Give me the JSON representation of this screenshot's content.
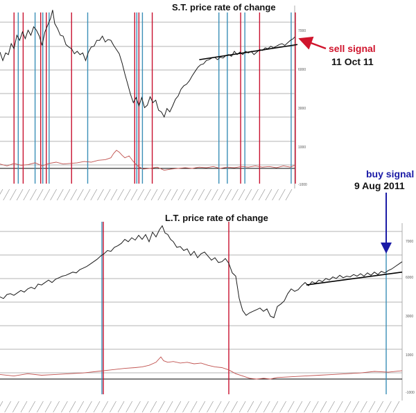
{
  "colors": {
    "price": "#1a1a1a",
    "trendline": "#000000",
    "grid": "#9a9a9a",
    "sell_signal": "#c8102e",
    "buy_signal": "#3a8fb7",
    "roc": "#c0504d",
    "sell_annotation": "#d0142c",
    "buy_annotation": "#1a1aa6"
  },
  "chart_data": [
    {
      "type": "line",
      "title": "S.T. price rate of change",
      "axis_tick_labels": [
        "7000",
        "6000",
        "3000",
        "1000",
        "-1000"
      ],
      "price_series": [
        [
          0,
          5.9
        ],
        [
          4,
          5.4
        ],
        [
          8,
          5.85
        ],
        [
          12,
          5.75
        ],
        [
          16,
          6.4
        ],
        [
          20,
          6.1
        ],
        [
          24,
          6.9
        ],
        [
          28,
          6.6
        ],
        [
          32,
          7.1
        ],
        [
          36,
          6.7
        ],
        [
          40,
          7.2
        ],
        [
          44,
          6.9
        ],
        [
          48,
          7.4
        ],
        [
          52,
          7.2
        ],
        [
          56,
          6.85
        ],
        [
          60,
          6.3
        ],
        [
          64,
          7.1
        ],
        [
          68,
          7.5
        ],
        [
          72,
          7.9
        ],
        [
          75,
          8.4
        ],
        [
          78,
          7.6
        ],
        [
          82,
          7.3
        ],
        [
          86,
          6.9
        ],
        [
          90,
          6.85
        ],
        [
          94,
          6.35
        ],
        [
          98,
          6.2
        ],
        [
          102,
          6.1
        ],
        [
          106,
          5.8
        ],
        [
          110,
          5.95
        ],
        [
          114,
          5.75
        ],
        [
          118,
          5.85
        ],
        [
          122,
          5.4
        ],
        [
          126,
          5.9
        ],
        [
          130,
          6.2
        ],
        [
          134,
          6.25
        ],
        [
          138,
          6.6
        ],
        [
          142,
          6.6
        ],
        [
          146,
          6.85
        ],
        [
          150,
          6.5
        ],
        [
          154,
          6.65
        ],
        [
          158,
          6.6
        ],
        [
          162,
          6.3
        ],
        [
          166,
          6.05
        ],
        [
          170,
          5.8
        ],
        [
          174,
          5.25
        ],
        [
          178,
          4.6
        ],
        [
          182,
          4.0
        ],
        [
          186,
          3.4
        ],
        [
          190,
          2.9
        ],
        [
          194,
          3.2
        ],
        [
          198,
          2.7
        ],
        [
          202,
          3.2
        ],
        [
          206,
          2.6
        ],
        [
          210,
          2.75
        ],
        [
          214,
          3.25
        ],
        [
          218,
          2.9
        ],
        [
          222,
          3.05
        ],
        [
          226,
          2.45
        ],
        [
          230,
          2.35
        ],
        [
          234,
          2.05
        ],
        [
          238,
          2.55
        ],
        [
          242,
          2.35
        ],
        [
          246,
          2.7
        ],
        [
          250,
          3.1
        ],
        [
          254,
          3.3
        ],
        [
          258,
          3.7
        ],
        [
          262,
          3.9
        ],
        [
          266,
          4.0
        ],
        [
          270,
          4.2
        ],
        [
          274,
          4.5
        ],
        [
          278,
          4.75
        ],
        [
          282,
          5.0
        ],
        [
          286,
          5.15
        ],
        [
          290,
          5.2
        ],
        [
          294,
          5.4
        ],
        [
          298,
          5.45
        ],
        [
          302,
          5.55
        ],
        [
          306,
          5.6
        ],
        [
          310,
          5.45
        ],
        [
          314,
          5.6
        ],
        [
          318,
          5.55
        ],
        [
          322,
          5.7
        ],
        [
          326,
          5.75
        ],
        [
          330,
          5.65
        ],
        [
          334,
          5.95
        ],
        [
          338,
          5.75
        ],
        [
          342,
          5.9
        ],
        [
          346,
          5.75
        ],
        [
          350,
          5.95
        ],
        [
          354,
          5.85
        ],
        [
          358,
          5.95
        ],
        [
          362,
          5.75
        ],
        [
          366,
          5.9
        ],
        [
          370,
          6.05
        ],
        [
          374,
          6.0
        ],
        [
          378,
          6.15
        ],
        [
          382,
          6.1
        ],
        [
          386,
          6.25
        ],
        [
          390,
          6.15
        ],
        [
          394,
          6.25
        ],
        [
          398,
          6.35
        ],
        [
          402,
          6.4
        ],
        [
          406,
          6.3
        ],
        [
          410,
          6.45
        ],
        [
          414,
          6.6
        ],
        [
          418,
          6.7
        ],
        [
          420,
          6.8
        ]
      ],
      "roc_series": [
        [
          0,
          0.35
        ],
        [
          10,
          0.2
        ],
        [
          20,
          0.4
        ],
        [
          30,
          0.25
        ],
        [
          40,
          0.3
        ],
        [
          50,
          0.45
        ],
        [
          60,
          0.2
        ],
        [
          70,
          0.4
        ],
        [
          80,
          0.5
        ],
        [
          90,
          0.35
        ],
        [
          100,
          0.4
        ],
        [
          110,
          0.45
        ],
        [
          120,
          0.55
        ],
        [
          130,
          0.5
        ],
        [
          140,
          0.65
        ],
        [
          150,
          0.7
        ],
        [
          158,
          0.85
        ],
        [
          162,
          1.2
        ],
        [
          166,
          1.45
        ],
        [
          170,
          1.3
        ],
        [
          174,
          1.05
        ],
        [
          178,
          0.85
        ],
        [
          184,
          1.0
        ],
        [
          190,
          0.55
        ],
        [
          196,
          0.2
        ],
        [
          204,
          -0.05
        ],
        [
          214,
          0.0
        ],
        [
          224,
          0.1
        ],
        [
          234,
          -0.15
        ],
        [
          244,
          -0.05
        ],
        [
          254,
          0.0
        ],
        [
          264,
          0.05
        ],
        [
          274,
          0.0
        ],
        [
          284,
          0.1
        ],
        [
          294,
          0.05
        ],
        [
          304,
          0.15
        ],
        [
          314,
          0.0
        ],
        [
          324,
          0.1
        ],
        [
          334,
          0.05
        ],
        [
          344,
          0.15
        ],
        [
          354,
          0.1
        ],
        [
          364,
          0.2
        ],
        [
          374,
          0.1
        ],
        [
          384,
          0.15
        ],
        [
          394,
          0.05
        ],
        [
          404,
          0.2
        ],
        [
          414,
          0.1
        ],
        [
          420,
          0.25
        ]
      ],
      "trendline": [
        [
          284,
          5.45
        ],
        [
          424,
          6.35
        ]
      ],
      "sell_signals": [
        20,
        33,
        58,
        66,
        102,
        192,
        198,
        217,
        343,
        370,
        421
      ],
      "buy_signals": [
        26,
        50,
        61,
        70,
        125,
        195,
        203,
        312,
        324,
        349,
        415
      ],
      "annotation": {
        "text": "sell signal",
        "date": "11 Oct 11",
        "x": 421
      }
    },
    {
      "type": "line",
      "title": "L.T. price rate of change",
      "axis_tick_labels": [
        "7000",
        "6000",
        "3000",
        "1000",
        "-1000"
      ],
      "price_series": [
        [
          0,
          4.3
        ],
        [
          5,
          4.2
        ],
        [
          10,
          4.45
        ],
        [
          15,
          4.5
        ],
        [
          20,
          4.4
        ],
        [
          25,
          4.55
        ],
        [
          30,
          4.7
        ],
        [
          35,
          4.6
        ],
        [
          40,
          4.8
        ],
        [
          45,
          4.9
        ],
        [
          50,
          4.8
        ],
        [
          55,
          5.1
        ],
        [
          60,
          5.05
        ],
        [
          65,
          5.2
        ],
        [
          70,
          5.35
        ],
        [
          75,
          5.2
        ],
        [
          80,
          5.4
        ],
        [
          85,
          5.5
        ],
        [
          90,
          5.6
        ],
        [
          95,
          5.65
        ],
        [
          100,
          5.75
        ],
        [
          105,
          5.85
        ],
        [
          110,
          5.8
        ],
        [
          115,
          6.0
        ],
        [
          120,
          6.1
        ],
        [
          125,
          6.2
        ],
        [
          130,
          6.35
        ],
        [
          135,
          6.5
        ],
        [
          140,
          6.65
        ],
        [
          145,
          6.85
        ],
        [
          150,
          7.0
        ],
        [
          155,
          7.2
        ],
        [
          160,
          7.15
        ],
        [
          165,
          7.4
        ],
        [
          170,
          7.5
        ],
        [
          175,
          7.65
        ],
        [
          180,
          7.9
        ],
        [
          185,
          7.75
        ],
        [
          190,
          8.0
        ],
        [
          195,
          7.85
        ],
        [
          200,
          8.15
        ],
        [
          205,
          7.9
        ],
        [
          210,
          8.2
        ],
        [
          215,
          7.75
        ],
        [
          220,
          8.35
        ],
        [
          225,
          8.05
        ],
        [
          230,
          8.5
        ],
        [
          234,
          8.75
        ],
        [
          238,
          8.3
        ],
        [
          242,
          8.2
        ],
        [
          246,
          7.9
        ],
        [
          250,
          7.75
        ],
        [
          255,
          7.4
        ],
        [
          260,
          7.45
        ],
        [
          265,
          7.2
        ],
        [
          270,
          7.3
        ],
        [
          275,
          6.9
        ],
        [
          280,
          7.15
        ],
        [
          285,
          6.75
        ],
        [
          290,
          7.0
        ],
        [
          295,
          7.1
        ],
        [
          300,
          6.85
        ],
        [
          305,
          6.6
        ],
        [
          310,
          6.75
        ],
        [
          315,
          6.45
        ],
        [
          320,
          6.5
        ],
        [
          325,
          6.7
        ],
        [
          330,
          6.4
        ],
        [
          335,
          5.8
        ],
        [
          340,
          5.6
        ],
        [
          345,
          4.2
        ],
        [
          350,
          3.45
        ],
        [
          355,
          3.15
        ],
        [
          360,
          3.3
        ],
        [
          365,
          3.4
        ],
        [
          370,
          3.5
        ],
        [
          375,
          3.6
        ],
        [
          380,
          3.4
        ],
        [
          385,
          3.55
        ],
        [
          390,
          3.1
        ],
        [
          395,
          3.0
        ],
        [
          400,
          3.7
        ],
        [
          405,
          3.85
        ],
        [
          410,
          4.05
        ],
        [
          415,
          4.5
        ],
        [
          420,
          4.8
        ],
        [
          425,
          4.65
        ],
        [
          430,
          4.75
        ],
        [
          435,
          5.0
        ],
        [
          440,
          5.2
        ],
        [
          445,
          5.0
        ],
        [
          450,
          5.25
        ],
        [
          455,
          5.15
        ],
        [
          460,
          5.35
        ],
        [
          465,
          5.25
        ],
        [
          470,
          5.45
        ],
        [
          475,
          5.35
        ],
        [
          480,
          5.55
        ],
        [
          485,
          5.45
        ],
        [
          490,
          5.65
        ],
        [
          495,
          5.5
        ],
        [
          500,
          5.6
        ],
        [
          505,
          5.55
        ],
        [
          510,
          5.7
        ],
        [
          515,
          5.6
        ],
        [
          520,
          5.75
        ],
        [
          525,
          5.6
        ],
        [
          530,
          5.8
        ],
        [
          535,
          5.65
        ],
        [
          540,
          5.85
        ],
        [
          545,
          5.7
        ],
        [
          550,
          5.9
        ],
        [
          555,
          5.8
        ],
        [
          560,
          5.95
        ],
        [
          565,
          6.05
        ],
        [
          570,
          6.2
        ],
        [
          575,
          6.35
        ],
        [
          580,
          6.5
        ]
      ],
      "roc_series": [
        [
          0,
          0.3
        ],
        [
          20,
          0.2
        ],
        [
          40,
          0.35
        ],
        [
          60,
          0.25
        ],
        [
          80,
          0.3
        ],
        [
          100,
          0.35
        ],
        [
          120,
          0.4
        ],
        [
          140,
          0.5
        ],
        [
          160,
          0.6
        ],
        [
          180,
          0.7
        ],
        [
          195,
          0.75
        ],
        [
          205,
          0.8
        ],
        [
          215,
          0.9
        ],
        [
          225,
          1.1
        ],
        [
          232,
          1.45
        ],
        [
          236,
          1.2
        ],
        [
          242,
          1.1
        ],
        [
          250,
          1.15
        ],
        [
          260,
          1.05
        ],
        [
          270,
          1.1
        ],
        [
          280,
          1.0
        ],
        [
          290,
          1.05
        ],
        [
          300,
          0.9
        ],
        [
          310,
          0.8
        ],
        [
          320,
          0.75
        ],
        [
          330,
          0.6
        ],
        [
          340,
          0.35
        ],
        [
          350,
          0.2
        ],
        [
          360,
          0.05
        ],
        [
          370,
          0.0
        ],
        [
          380,
          0.05
        ],
        [
          390,
          0.0
        ],
        [
          400,
          0.1
        ],
        [
          420,
          0.15
        ],
        [
          440,
          0.2
        ],
        [
          460,
          0.25
        ],
        [
          480,
          0.3
        ],
        [
          500,
          0.35
        ],
        [
          520,
          0.4
        ],
        [
          540,
          0.5
        ],
        [
          560,
          0.45
        ],
        [
          580,
          0.55
        ]
      ],
      "trendline": [
        [
          442,
          5.05
        ],
        [
          580,
          5.85
        ]
      ],
      "sell_signals": [
        149,
        330
      ],
      "buy_signals": [
        147,
        557
      ],
      "annotation": {
        "text": "buy signal",
        "date": "9 Aug 2011",
        "x": 557
      }
    }
  ],
  "annotations": {
    "st_title": "S.T. price rate of change",
    "lt_title": "L.T. price rate of change",
    "sell_label": "sell signal",
    "sell_date": "11 Oct 11",
    "buy_label": "buy signal",
    "buy_date": "9 Aug 2011"
  }
}
